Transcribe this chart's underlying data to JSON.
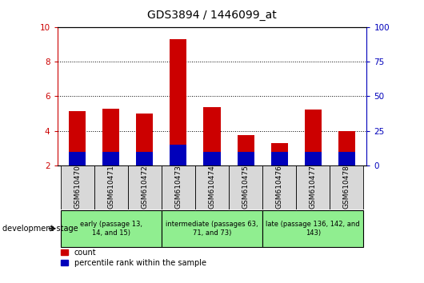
{
  "title": "GDS3894 / 1446099_at",
  "samples": [
    "GSM610470",
    "GSM610471",
    "GSM610472",
    "GSM610473",
    "GSM610474",
    "GSM610475",
    "GSM610476",
    "GSM610477",
    "GSM610478"
  ],
  "count_values": [
    5.15,
    5.3,
    5.0,
    9.3,
    5.35,
    3.75,
    3.3,
    5.25,
    4.0
  ],
  "pct_right_values": [
    10,
    10,
    10,
    15,
    10,
    10,
    10,
    10,
    10
  ],
  "ylim_left": [
    2,
    10
  ],
  "ylim_right": [
    0,
    100
  ],
  "yticks_left": [
    2,
    4,
    6,
    8,
    10
  ],
  "yticks_right": [
    0,
    25,
    50,
    75,
    100
  ],
  "bar_color_red": "#cc0000",
  "bar_color_blue": "#0000bb",
  "bar_width": 0.5,
  "plot_bg": "#ffffff",
  "sample_area_bg": "#cccccc",
  "group_color_early": "#90ee90",
  "group_color_inter": "#90ee90",
  "group_color_late": "#90ee90",
  "group_labels": [
    "early (passage 13,\n14, and 15)",
    "intermediate (passages 63,\n71, and 73)",
    "late (passage 136, 142, and\n143)"
  ],
  "group_starts": [
    0,
    3,
    6
  ],
  "group_ends": [
    2,
    5,
    8
  ],
  "xlabel_dev": "development stage",
  "legend_count": "count",
  "legend_percentile": "percentile rank within the sample",
  "title_fontsize": 10,
  "tick_fontsize": 7.5,
  "axis_color_left": "#cc0000",
  "axis_color_right": "#0000bb"
}
